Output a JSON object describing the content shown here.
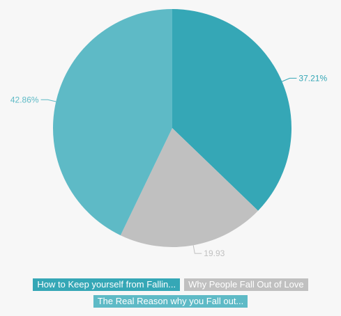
{
  "chart_data": {
    "type": "pie",
    "slices": [
      {
        "name": "How to Keep yourself from Fallin...",
        "value": 37.21,
        "label": "37.21%",
        "color": "#35a7b6"
      },
      {
        "name": "Why People Fall Out of Love",
        "value": 19.93,
        "label": "19.93",
        "color": "#c0c0c0"
      },
      {
        "name": "The Real Reason why you Fall out...",
        "value": 42.86,
        "label": "42.86%",
        "color": "#5ebac6"
      }
    ],
    "legend_position": "bottom"
  }
}
